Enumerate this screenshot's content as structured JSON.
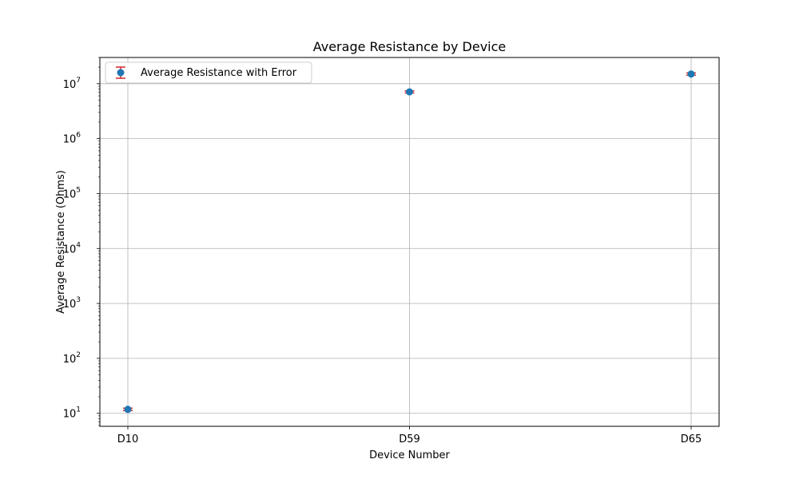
{
  "chart_data": {
    "type": "scatter",
    "title": "Average Resistance by Device",
    "xlabel": "Device Number",
    "ylabel": "Average Resistance (Ohms)",
    "categories": [
      "D10",
      "D59",
      "D65"
    ],
    "series": [
      {
        "name": "Average Resistance with Error",
        "values": [
          11.8,
          7100000,
          15000000
        ],
        "errors": [
          0.6,
          300000,
          700000
        ]
      }
    ],
    "y_scale": "log",
    "ylim": [
      5.8,
      30000000
    ],
    "y_ticks": [
      {
        "value": 10,
        "base": "10",
        "exp": "1"
      },
      {
        "value": 100,
        "base": "10",
        "exp": "2"
      },
      {
        "value": 1000,
        "base": "10",
        "exp": "3"
      },
      {
        "value": 10000,
        "base": "10",
        "exp": "4"
      },
      {
        "value": 100000,
        "base": "10",
        "exp": "5"
      },
      {
        "value": 1000000,
        "base": "10",
        "exp": "6"
      },
      {
        "value": 10000000,
        "base": "10",
        "exp": "7"
      }
    ],
    "grid": true,
    "legend_position": "top-left",
    "colors": {
      "marker": "#1f77b4",
      "errorbar": "#d62728",
      "grid": "#b0b0b0",
      "axis": "#000000"
    }
  }
}
